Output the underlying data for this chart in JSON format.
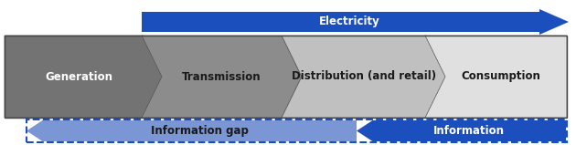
{
  "fig_width": 6.3,
  "fig_height": 1.59,
  "dpi": 100,
  "background": "#ffffff",
  "chain_labels": [
    "Generation",
    "Transmission",
    "Distribution (and retail)",
    "Consumption"
  ],
  "chain_colors": [
    "#737373",
    "#8c8c8c",
    "#c0c0c0",
    "#e0e0e0"
  ],
  "chain_text_colors": [
    "#ffffff",
    "#1a1a1a",
    "#1a1a1a",
    "#1a1a1a"
  ],
  "info_arrow_color_fill": "#7b96d4",
  "info_arrow_color_dark": "#1c4fbe",
  "info_gap_label": "Information gap",
  "info_label": "Information",
  "info_label_color": "#ffffff",
  "info_gap_label_color": "#1a1a1a",
  "elec_arrow_color": "#1c4fbe",
  "elec_label": "Electricity",
  "elec_label_color": "#ffffff",
  "dashed_color": "#1c4fbe",
  "label_fontsize": 8.5,
  "label_fontweight": "bold"
}
